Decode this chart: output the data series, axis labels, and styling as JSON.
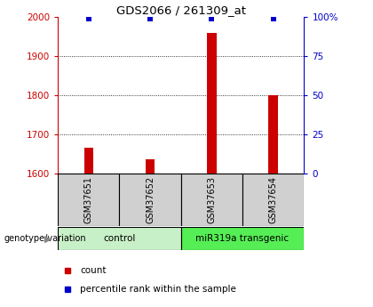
{
  "title": "GDS2066 / 261309_at",
  "samples": [
    "GSM37651",
    "GSM37652",
    "GSM37653",
    "GSM37654"
  ],
  "count_values": [
    1665,
    1637,
    1960,
    1800
  ],
  "percentile_values": [
    99,
    99,
    99,
    99
  ],
  "ylim_left": [
    1600,
    2000
  ],
  "yticks_left": [
    1600,
    1700,
    1800,
    1900,
    2000
  ],
  "ylim_right": [
    0,
    100
  ],
  "yticks_right": [
    0,
    25,
    50,
    75,
    100
  ],
  "bar_color": "#cc0000",
  "marker_color": "#0000cc",
  "groups": [
    {
      "label": "control",
      "samples": [
        0,
        1
      ],
      "color": "#c8f0c8"
    },
    {
      "label": "miR319a transgenic",
      "samples": [
        2,
        3
      ],
      "color": "#55ee55"
    }
  ],
  "xlabel_group": "genotype/variation",
  "legend_count_label": "count",
  "legend_percentile_label": "percentile rank within the sample",
  "left_tick_color": "#cc0000",
  "right_tick_color": "#0000cc",
  "bar_width": 0.15,
  "marker_size": 5,
  "sample_box_color": "#d0d0d0",
  "grid_color": "#000000",
  "grid_lw": 0.6
}
